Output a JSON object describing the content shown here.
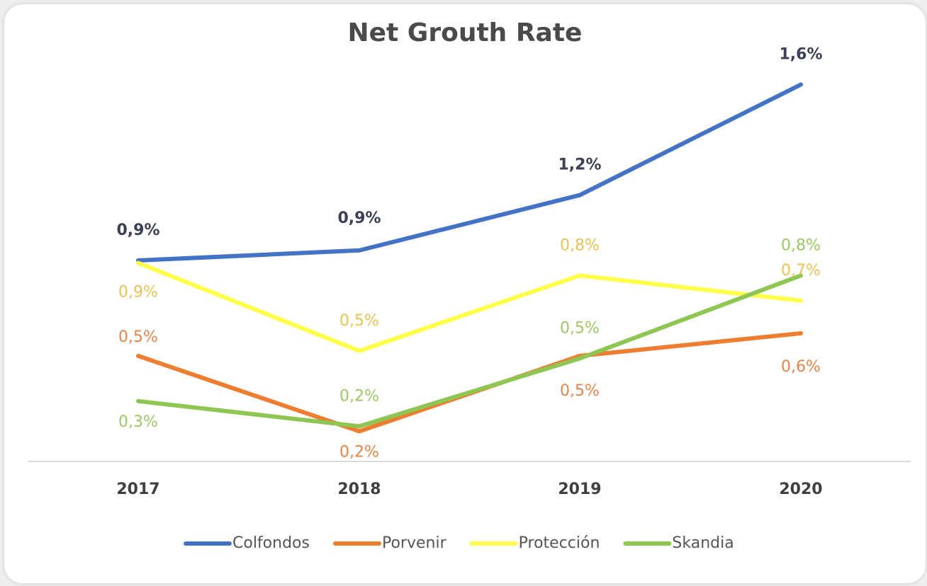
{
  "chart_data": {
    "type": "line",
    "title": "Net Grouth Rate",
    "categories": [
      "2017",
      "2018",
      "2019",
      "2020"
    ],
    "ylim": [
      0.1,
      1.7
    ],
    "legend": "bottom",
    "series": [
      {
        "name": "Colfondos",
        "color": "#4472c4",
        "label_color": "#3b4055",
        "values": [
          0.9,
          0.94,
          1.16,
          1.6
        ],
        "value_labels": [
          "0,9%",
          "0,9%",
          "1,2%",
          "1,6%"
        ]
      },
      {
        "name": "Porvenir",
        "color": "#ed7d31",
        "label_color": "#e3844a",
        "values": [
          0.52,
          0.22,
          0.52,
          0.61
        ],
        "value_labels": [
          "0,5%",
          "0,2%",
          "0,5%",
          "0,6%"
        ]
      },
      {
        "name": "Protección",
        "color": "#ffff4a",
        "label_color": "#e9c255",
        "values": [
          0.89,
          0.54,
          0.84,
          0.74
        ],
        "value_labels": [
          "0,9%",
          "0,5%",
          "0,8%",
          "0,7%"
        ]
      },
      {
        "name": "Skandia",
        "color": "#8fc653",
        "label_color": "#9cc765",
        "values": [
          0.34,
          0.24,
          0.51,
          0.84
        ],
        "value_labels": [
          "0,3%",
          "0,2%",
          "0,5%",
          "0,8%"
        ]
      }
    ]
  }
}
